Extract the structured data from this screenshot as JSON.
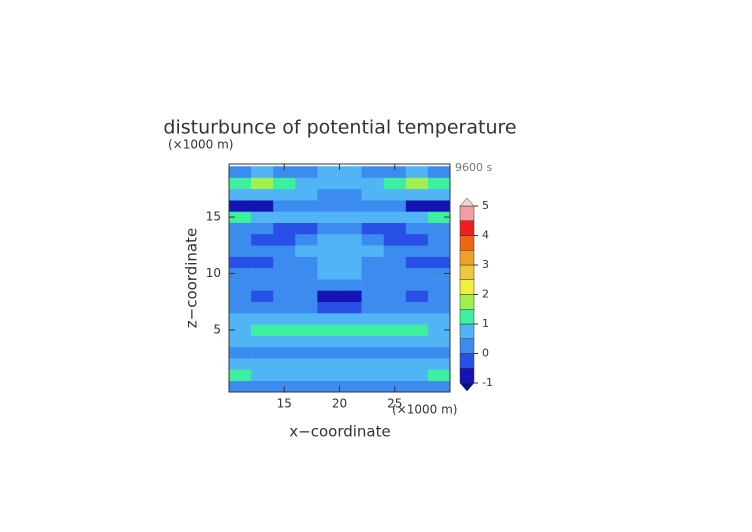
{
  "chart_data": {
    "type": "contour",
    "title": "disturbunce of potential temperature",
    "x_label": "x−coordinate",
    "y_label": "z−coordinate",
    "x_unit": "(×1000 m)",
    "y_unit": "(×1000 m)",
    "time_label": "9600 s",
    "xlim": [
      10,
      30
    ],
    "ylim": [
      -0.5,
      19.7
    ],
    "xticks": [
      15,
      20,
      25
    ],
    "yticks": [
      5,
      10,
      15
    ],
    "x": [
      11,
      13,
      15,
      17,
      19,
      21,
      23,
      25,
      27,
      29
    ],
    "z": [
      0,
      1,
      2,
      3,
      4,
      5,
      6,
      7,
      8,
      9,
      10,
      11,
      12,
      13,
      14,
      15,
      16,
      17,
      18,
      19
    ],
    "values": [
      [
        0.3,
        0.3,
        0.3,
        0.3,
        0.3,
        0.3,
        0.3,
        0.3,
        0.3,
        0.3
      ],
      [
        1.1,
        0.8,
        0.7,
        0.7,
        0.7,
        0.7,
        0.7,
        0.7,
        0.8,
        1.1
      ],
      [
        0.6,
        0.6,
        0.6,
        0.6,
        0.6,
        0.6,
        0.6,
        0.6,
        0.6,
        0.6
      ],
      [
        0.3,
        0.3,
        0.3,
        0.3,
        0.2,
        0.2,
        0.3,
        0.3,
        0.3,
        0.3
      ],
      [
        0.6,
        0.6,
        0.7,
        0.7,
        0.6,
        0.6,
        0.7,
        0.7,
        0.6,
        0.6
      ],
      [
        0.7,
        1.1,
        1.2,
        1.2,
        1.1,
        1.1,
        1.2,
        1.2,
        1.1,
        0.7
      ],
      [
        0.6,
        0.6,
        0.6,
        0.6,
        0.6,
        0.6,
        0.6,
        0.6,
        0.6,
        0.6
      ],
      [
        0.3,
        0.3,
        0.3,
        0.3,
        -0.2,
        -0.2,
        0.3,
        0.3,
        0.3,
        0.3
      ],
      [
        0.3,
        -0.1,
        0.3,
        0.3,
        -0.6,
        -0.6,
        0.3,
        0.3,
        -0.1,
        0.3
      ],
      [
        0.3,
        0.3,
        0.3,
        0.3,
        0.3,
        0.3,
        0.3,
        0.3,
        0.3,
        0.3
      ],
      [
        0.3,
        0.3,
        0.3,
        0.3,
        0.6,
        0.6,
        0.3,
        0.3,
        0.3,
        0.3
      ],
      [
        -0.1,
        -0.1,
        0.3,
        0.3,
        0.6,
        0.6,
        0.3,
        0.3,
        -0.1,
        -0.1
      ],
      [
        0.3,
        0.3,
        0.3,
        0.6,
        0.6,
        0.6,
        0.6,
        0.3,
        0.3,
        0.3
      ],
      [
        0.3,
        -0.1,
        -0.1,
        0.3,
        0.6,
        0.6,
        0.3,
        -0.1,
        -0.1,
        0.3
      ],
      [
        0.3,
        0.3,
        -0.1,
        -0.1,
        0.3,
        0.3,
        -0.1,
        -0.1,
        0.3,
        0.3
      ],
      [
        1.1,
        0.6,
        0.6,
        0.6,
        0.6,
        0.6,
        0.6,
        0.6,
        0.6,
        1.1
      ],
      [
        -0.6,
        -0.6,
        0.3,
        0.3,
        0.3,
        0.3,
        0.3,
        0.3,
        -0.6,
        -0.6
      ],
      [
        0.6,
        0.6,
        0.6,
        0.6,
        0.3,
        0.3,
        0.6,
        0.6,
        0.6,
        0.6
      ],
      [
        1.2,
        1.6,
        1.2,
        0.6,
        0.6,
        0.6,
        0.6,
        1.2,
        1.6,
        1.2
      ],
      [
        0.3,
        0.6,
        0.3,
        0.3,
        0.6,
        0.6,
        0.3,
        0.3,
        0.6,
        0.3
      ]
    ],
    "levels": [
      -1,
      -0.5,
      0,
      0.5,
      1,
      1.5,
      2,
      2.5,
      3,
      3.5,
      4,
      4.5,
      5
    ],
    "colors": [
      "#1414b4",
      "#2850e6",
      "#3c8cf0",
      "#50b4f5",
      "#3cf0a0",
      "#a0f050",
      "#f0f03c",
      "#f0c83c",
      "#f0a028",
      "#f06414",
      "#f01e1e",
      "#f0a0a0"
    ],
    "under_color": "#0a0a8c",
    "over_color": "#f5d2d2",
    "colorbar_ticks": [
      -1,
      0,
      1,
      2,
      3,
      4,
      5
    ]
  }
}
